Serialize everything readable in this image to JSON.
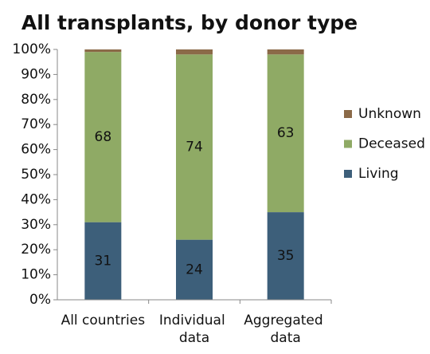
{
  "chart_data": {
    "type": "stacked_bar",
    "title": "All transplants, by donor type",
    "categories": [
      "All countries",
      "Individual data",
      "Aggregated data"
    ],
    "series": [
      {
        "name": "Living",
        "color": "#3d5f7a",
        "values": [
          31,
          24,
          35
        ],
        "data_labels": true
      },
      {
        "name": "Deceased",
        "color": "#8faa65",
        "values": [
          68,
          74,
          63
        ],
        "data_labels": true
      },
      {
        "name": "Unknown",
        "color": "#8b6a48",
        "values": [
          1,
          2,
          2
        ],
        "data_labels": false
      }
    ],
    "ylim": [
      0,
      100
    ],
    "yticks": [
      {
        "value": 0,
        "label": "0%"
      },
      {
        "value": 10,
        "label": "10%"
      },
      {
        "value": 20,
        "label": "20%"
      },
      {
        "value": 30,
        "label": "30%"
      },
      {
        "value": 40,
        "label": "40%"
      },
      {
        "value": 50,
        "label": "50%"
      },
      {
        "value": 60,
        "label": "60%"
      },
      {
        "value": 70,
        "label": "70%"
      },
      {
        "value": 80,
        "label": "80%"
      },
      {
        "value": 90,
        "label": "90%"
      },
      {
        "value": 100,
        "label": "100%"
      }
    ],
    "grid": false,
    "legend": "right"
  }
}
